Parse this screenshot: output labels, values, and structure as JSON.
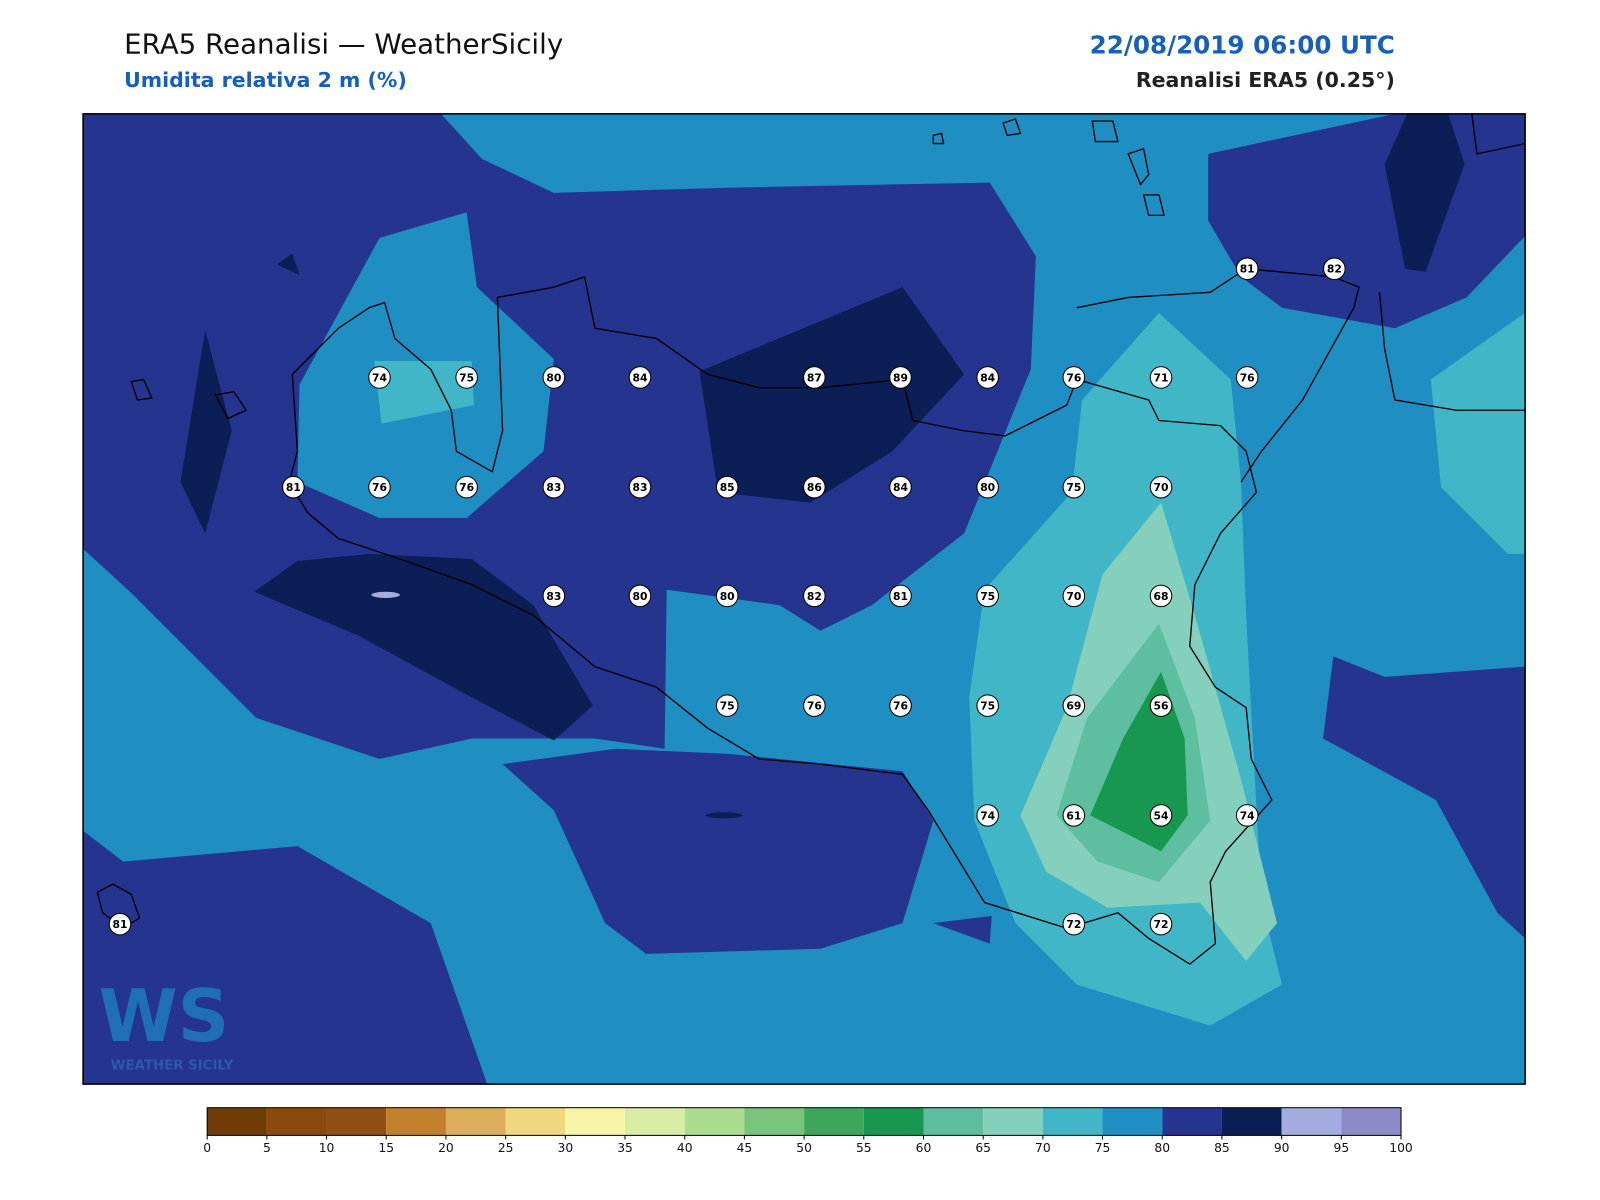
{
  "header": {
    "title": "ERA5 Reanalisi — WeatherSicily",
    "subtitle": "Umidita relativa 2 m (%)",
    "datetime": "22/08/2019 06:00 UTC",
    "source": "Reanalisi ERA5 (0.25°)"
  },
  "stations": [
    81,
    82,
    74,
    75,
    80,
    84,
    87,
    89,
    84,
    76,
    71,
    76,
    81,
    76,
    76,
    83,
    83,
    85,
    86,
    84,
    80,
    75,
    70,
    83,
    80,
    80,
    82,
    81,
    75,
    70,
    68,
    75,
    76,
    76,
    75,
    69,
    56,
    74,
    61,
    54,
    74,
    81,
    72,
    72
  ],
  "colorbar": {
    "levels": [
      0,
      5,
      10,
      15,
      20,
      25,
      30,
      35,
      40,
      45,
      50,
      55,
      60,
      65,
      70,
      75,
      80,
      85,
      90,
      95,
      100
    ],
    "colors": [
      "#6f3c07",
      "#8a4a0e",
      "#8f4e12",
      "#c0802c",
      "#dcae5a",
      "#f0d67c",
      "#f7f6a8",
      "#d8eca4",
      "#acdc8d",
      "#77c47a",
      "#3ea75c",
      "#17974f",
      "#5ebfa0",
      "#84d0bd",
      "#41b6c6",
      "#1f8ec3",
      "#25348f",
      "#0c1e56",
      "#a5ade0",
      "#8d8ac8"
    ]
  },
  "logo": {
    "mark": "WS",
    "text": "WEATHER SICILY"
  }
}
